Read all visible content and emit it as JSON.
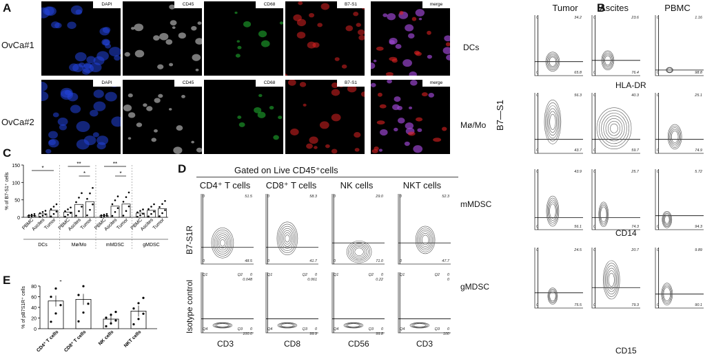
{
  "panels": {
    "A": "A",
    "B": "B",
    "C": "C",
    "D": "D",
    "E": "E"
  },
  "panelA": {
    "rows": [
      "OvCa#1",
      "OvCa#2"
    ],
    "channels": [
      "DAPI",
      "CD45",
      "CD68",
      "B7-S1",
      "merge"
    ]
  },
  "panelB": {
    "columns": [
      "Tumor",
      "Ascites",
      "PBMC"
    ],
    "rows": [
      "DCs",
      "Mø/Mo",
      "mMDSC",
      "gMDSC"
    ],
    "y_axis": "B7—S1",
    "x_axes": [
      "HLA-DR",
      "CD14",
      "CD15"
    ],
    "quadrants": [
      [
        [
          "0",
          "34.2",
          "0",
          "65.8"
        ],
        [
          "0",
          "23.6",
          "0",
          "76.4"
        ],
        [
          "0",
          "1.16",
          "0",
          "98.8"
        ]
      ],
      [
        [
          "0",
          "56.3",
          "0",
          "43.7"
        ],
        [
          "0",
          "40.3",
          "0",
          "59.7"
        ],
        [
          "0",
          "25.1",
          "0",
          "74.9"
        ]
      ],
      [
        [
          "0",
          "43.9",
          "0",
          "56.1"
        ],
        [
          "0",
          "25.7",
          "0",
          "74.3"
        ],
        [
          "0",
          "5.72",
          "0",
          "94.3"
        ]
      ],
      [
        [
          "0",
          "24.5",
          "0",
          "75.5"
        ],
        [
          "0",
          "20.7",
          "0",
          "79.3"
        ],
        [
          "0",
          "9.89",
          "0",
          "90.1"
        ]
      ]
    ]
  },
  "panelD": {
    "header": "Gated on Live CD45⁺cells",
    "columns": [
      "CD4⁺ T cells",
      "CD8⁺ T cells",
      "NK cells",
      "NKT cells"
    ],
    "row_labels": [
      "B7-S1R",
      "Isotype control"
    ],
    "x_axes": [
      "CD3",
      "CD8",
      "CD56",
      "CD3"
    ],
    "top_quadrants": [
      [
        "0",
        "51.5",
        "0",
        "48.5"
      ],
      [
        "0",
        "58.3",
        "0",
        "41.7"
      ],
      [
        "0",
        "29.0",
        "0",
        "71.0"
      ],
      [
        "0",
        "52.3",
        "0",
        "47.7"
      ]
    ],
    "bottom_quadrants": [
      [
        "Q1",
        "Q2",
        "0",
        "0.048",
        "Q4",
        "Q3",
        "0",
        "100.0"
      ],
      [
        "Q1",
        "Q2",
        "0",
        "0.061",
        "Q4",
        "Q3",
        "0",
        "99.9"
      ],
      [
        "Q1",
        "Q2",
        "0",
        "0.22",
        "Q4",
        "Q3",
        "0",
        "99.8"
      ],
      [
        "Q1",
        "Q2",
        "0",
        "0",
        "Q4",
        "Q3",
        "0",
        "100"
      ]
    ]
  },
  "chart_data": [
    {
      "type": "bar",
      "panel": "C",
      "ylabel": "% of B7-S1⁺ cells",
      "ylim": [
        0,
        150
      ],
      "yticks": [
        "0",
        "50",
        "100",
        "150"
      ],
      "groups": [
        "DCs",
        "Mø/Mo",
        "mMDSC",
        "gMDSC"
      ],
      "categories": [
        "PBMC",
        "Ascites",
        "Tumor"
      ],
      "values": [
        [
          5,
          10,
          20
        ],
        [
          15,
          37,
          45
        ],
        [
          5,
          32,
          38
        ],
        [
          12,
          20,
          25
        ]
      ],
      "significance": [
        "*",
        "**",
        "*",
        "**",
        "*"
      ]
    },
    {
      "type": "bar",
      "panel": "E",
      "ylabel": "% of pB7S1R⁺ cells",
      "ylim": [
        0,
        80
      ],
      "yticks": [
        "0",
        "20",
        "40",
        "60",
        "80"
      ],
      "categories": [
        "CD4⁺ T cells",
        "CD8⁺ T cells",
        "NK cells",
        "NKT cells"
      ],
      "values": [
        52,
        55,
        18,
        33
      ]
    }
  ]
}
